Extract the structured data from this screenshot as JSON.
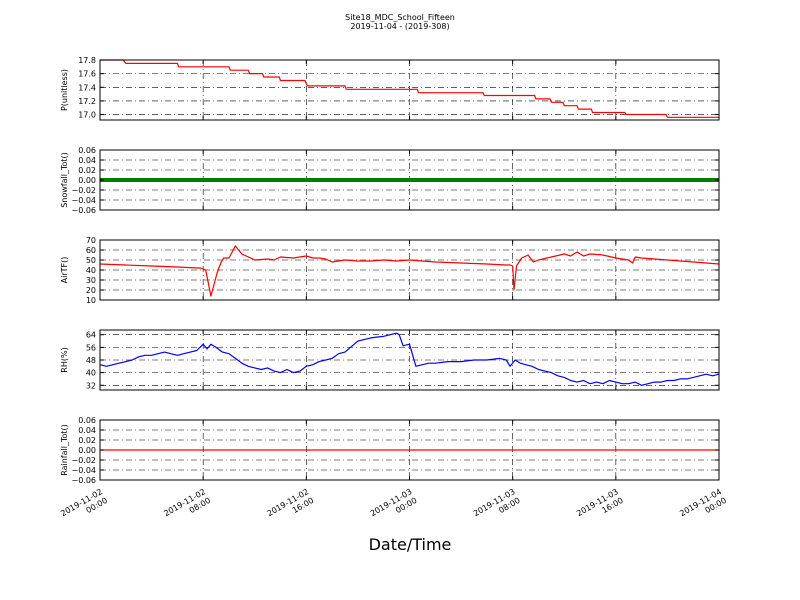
{
  "title": "Site18_MDC_School_Fifteen",
  "subtitle": "2019-11-04 - (2019-308)",
  "xlabel": "Date/Time",
  "x_ticks": [
    {
      "value": 0,
      "line1": "2019-11-02",
      "line2": "00:00"
    },
    {
      "value": 8,
      "line1": "2019-11-02",
      "line2": "08:00"
    },
    {
      "value": 16,
      "line1": "2019-11-02",
      "line2": "16:00"
    },
    {
      "value": 24,
      "line1": "2019-11-03",
      "line2": "00:00"
    },
    {
      "value": 32,
      "line1": "2019-11-03",
      "line2": "08:00"
    },
    {
      "value": 40,
      "line1": "2019-11-03",
      "line2": "16:00"
    },
    {
      "value": 48,
      "line1": "2019-11-04",
      "line2": "00:00"
    }
  ],
  "chart_data": [
    {
      "type": "line",
      "ylabel": "P(unitless)",
      "ylim": [
        16.92,
        17.8
      ],
      "yticks": [
        17.0,
        17.2,
        17.4,
        17.6,
        17.8
      ],
      "ytick_labels": [
        "17.0",
        "17.2",
        "17.4",
        "17.6",
        "17.8"
      ],
      "xlim": [
        0,
        48
      ],
      "grid": true,
      "color": "#ff0000",
      "x": [
        0,
        1.8,
        2,
        6,
        6.1,
        10,
        10.1,
        11.5,
        11.6,
        12.6,
        12.7,
        13.9,
        14,
        15.9,
        16,
        16.1,
        19,
        19.1,
        24.6,
        24.7,
        29.7,
        29.8,
        33.7,
        33.8,
        34.9,
        35,
        35.9,
        36,
        37,
        37.1,
        38.1,
        38.2,
        40.7,
        40.8,
        43.9,
        44,
        45.5,
        48
      ],
      "y": [
        17.8,
        17.8,
        17.75,
        17.75,
        17.7,
        17.7,
        17.65,
        17.65,
        17.6,
        17.6,
        17.55,
        17.55,
        17.5,
        17.5,
        17.45,
        17.42,
        17.42,
        17.37,
        17.37,
        17.32,
        17.32,
        17.28,
        17.28,
        17.23,
        17.23,
        17.18,
        17.18,
        17.13,
        17.13,
        17.08,
        17.08,
        17.03,
        17.03,
        17.0,
        17.0,
        16.96,
        16.96,
        16.96
      ]
    },
    {
      "type": "line",
      "ylabel": "Snowfall_Tot()",
      "ylim": [
        -0.06,
        0.06
      ],
      "yticks": [
        -0.06,
        -0.04,
        -0.02,
        0.0,
        0.02,
        0.04,
        0.06
      ],
      "ytick_labels": [
        "−0.06",
        "−0.04",
        "−0.02",
        "0.00",
        "0.02",
        "0.04",
        "0.06"
      ],
      "xlim": [
        0,
        48
      ],
      "grid": true,
      "color": "#008000",
      "x": [
        0,
        48
      ],
      "y": [
        0,
        0
      ]
    },
    {
      "type": "line",
      "ylabel": "AirTF()",
      "ylim": [
        10,
        70
      ],
      "yticks": [
        10,
        20,
        30,
        40,
        50,
        60,
        70
      ],
      "ytick_labels": [
        "10",
        "20",
        "30",
        "40",
        "50",
        "60",
        "70"
      ],
      "xlim": [
        0,
        48
      ],
      "grid": true,
      "color": "#ff0000",
      "x": [
        0,
        2,
        4,
        6,
        7.6,
        7.8,
        8.0,
        8.2,
        8.6,
        9.1,
        9.4,
        9.6,
        10,
        10.5,
        11,
        12,
        13,
        13.5,
        14,
        15,
        16,
        16.5,
        17,
        17.5,
        18,
        19,
        20,
        21,
        22,
        23,
        24,
        26,
        28,
        30,
        31.5,
        31.8,
        32,
        32.1,
        32.3,
        32.7,
        33.2,
        33.6,
        34,
        35,
        36,
        36.5,
        37,
        37.5,
        38,
        39,
        40,
        41,
        41.3,
        41.5,
        42,
        43,
        44,
        45,
        46,
        47,
        48
      ],
      "y": [
        46,
        45,
        44,
        43,
        42,
        42,
        41,
        40,
        14,
        38,
        48,
        52,
        52,
        64,
        56,
        50,
        51,
        50,
        53,
        52,
        54,
        52,
        52,
        51,
        48,
        50,
        49,
        49,
        50,
        49,
        50,
        48,
        47,
        46,
        45,
        45,
        44,
        20,
        44,
        52,
        55,
        48,
        50,
        53,
        56,
        54,
        58,
        54,
        56,
        55,
        52,
        50,
        47,
        53,
        52,
        51,
        50,
        49,
        48,
        47,
        46
      ]
    },
    {
      "type": "line",
      "ylabel": "RH(%)",
      "ylim": [
        29,
        67
      ],
      "yticks": [
        32,
        40,
        48,
        56,
        64
      ],
      "ytick_labels": [
        "32",
        "40",
        "48",
        "56",
        "64"
      ],
      "xlim": [
        0,
        48
      ],
      "grid": true,
      "color": "#0000ff",
      "x": [
        0,
        0.5,
        1,
        2,
        2.5,
        3,
        3.5,
        4,
        4.5,
        5,
        5.5,
        6,
        6.5,
        7,
        7.5,
        8,
        8.3,
        8.6,
        9,
        9.5,
        10,
        10.5,
        11,
        11.5,
        12,
        12.5,
        13,
        13.5,
        14,
        14.5,
        15,
        15.5,
        16,
        16.5,
        17,
        17.5,
        18,
        18.5,
        19,
        20,
        21,
        22,
        22.5,
        23,
        23.2,
        23.5,
        24,
        24.5,
        25,
        25.5,
        26,
        27,
        28,
        29,
        30,
        31,
        31.5,
        31.8,
        32.2,
        32.6,
        33,
        33.5,
        34,
        34.5,
        35,
        35.5,
        36,
        36.5,
        37,
        37.5,
        38,
        38.5,
        39,
        39.5,
        40,
        40.5,
        41,
        41.5,
        42,
        42.5,
        43,
        43.5,
        44,
        44.5,
        45,
        45.5,
        46,
        46.5,
        47,
        47.5,
        48
      ],
      "y": [
        45,
        44,
        45,
        47,
        48,
        50,
        51,
        51,
        52,
        53,
        52,
        51,
        52,
        53,
        54,
        58,
        55,
        58,
        56,
        53,
        52,
        49,
        46,
        44,
        43,
        42,
        43,
        41,
        40,
        42,
        40,
        41,
        44,
        45,
        47,
        48,
        49,
        52,
        53,
        60,
        62,
        63,
        64,
        65,
        64,
        57,
        58,
        44,
        45,
        46,
        46,
        47,
        47,
        48,
        48,
        49,
        48,
        44,
        48,
        46,
        45,
        44,
        42,
        41,
        40,
        38,
        37,
        35,
        34,
        35,
        33,
        34,
        33,
        35,
        34,
        33,
        33,
        34,
        32,
        33,
        34,
        34,
        35,
        35,
        36,
        36,
        37,
        38,
        39,
        38,
        39
      ]
    },
    {
      "type": "line",
      "ylabel": "Rainfall_Tot()",
      "ylim": [
        -0.06,
        0.06
      ],
      "yticks": [
        -0.06,
        -0.04,
        -0.02,
        0.0,
        0.02,
        0.04,
        0.06
      ],
      "ytick_labels": [
        "−0.06",
        "−0.04",
        "−0.02",
        "0.00",
        "0.02",
        "0.04",
        "0.06"
      ],
      "xlim": [
        0,
        48
      ],
      "grid": true,
      "color": "#ff0000",
      "x": [
        0,
        48
      ],
      "y": [
        0,
        0
      ]
    }
  ]
}
